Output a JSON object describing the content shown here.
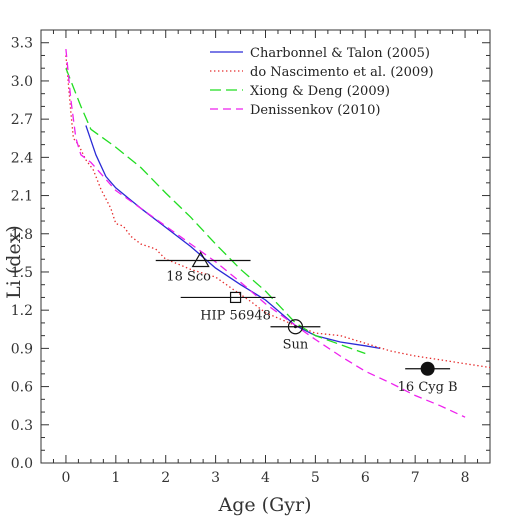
{
  "chart_data": {
    "type": "line",
    "xlabel": "Age (Gyr)",
    "ylabel": "Li (dex)",
    "xlim": [
      -0.5,
      8.5
    ],
    "ylim": [
      0.0,
      3.4
    ],
    "xticks": [
      0,
      1,
      2,
      3,
      4,
      5,
      6,
      7,
      8
    ],
    "yticks": [
      0.0,
      0.3,
      0.6,
      0.9,
      1.2,
      1.5,
      1.8,
      2.1,
      2.4,
      2.7,
      3.0,
      3.3
    ],
    "xtick_labels": [
      "0",
      "1",
      "2",
      "3",
      "4",
      "5",
      "6",
      "7",
      "8"
    ],
    "ytick_labels": [
      "0.0",
      "0.3",
      "0.6",
      "0.9",
      "1.2",
      "1.5",
      "1.8",
      "2.1",
      "2.4",
      "2.7",
      "3.0",
      "3.3"
    ],
    "grid": false,
    "legend_position": "top-right",
    "series": [
      {
        "name": "Charbonnel & Talon (2005)",
        "color": "#2b2bd6",
        "style": "solid",
        "x": [
          0.4,
          0.6,
          0.8,
          1.0,
          1.5,
          2.0,
          2.5,
          3.0,
          3.5,
          4.0,
          4.6,
          5.0,
          5.5,
          6.0,
          6.3
        ],
        "y": [
          2.65,
          2.42,
          2.25,
          2.16,
          2.0,
          1.85,
          1.7,
          1.53,
          1.4,
          1.28,
          1.08,
          1.0,
          0.95,
          0.92,
          0.9
        ]
      },
      {
        "name": "do Nascimento et al. (2009)",
        "color": "#e52a2a",
        "style": "dotted",
        "x": [
          0.0,
          0.1,
          0.15,
          0.25,
          0.4,
          0.55,
          0.7,
          0.9,
          1.0,
          1.15,
          1.3,
          1.5,
          1.8,
          2.0,
          2.2,
          2.5,
          3.0,
          3.4,
          3.7,
          4.0,
          4.6,
          5.0,
          5.5,
          6.0,
          6.5,
          7.0,
          7.5,
          8.0,
          8.5
        ],
        "y": [
          3.2,
          2.75,
          2.55,
          2.5,
          2.38,
          2.3,
          2.15,
          2.0,
          1.88,
          1.86,
          1.78,
          1.72,
          1.68,
          1.6,
          1.57,
          1.52,
          1.46,
          1.35,
          1.27,
          1.18,
          1.08,
          1.02,
          1.0,
          0.94,
          0.88,
          0.84,
          0.81,
          0.78,
          0.75
        ]
      },
      {
        "name": "Xiong & Deng (2009)",
        "color": "#22dd22",
        "style": "dashed",
        "x": [
          0.0,
          0.3,
          0.5,
          1.0,
          1.5,
          2.0,
          2.5,
          3.0,
          3.5,
          4.0,
          4.6,
          5.0,
          5.5,
          6.0
        ],
        "y": [
          3.1,
          2.8,
          2.62,
          2.48,
          2.32,
          2.12,
          1.93,
          1.72,
          1.52,
          1.35,
          1.1,
          1.0,
          0.93,
          0.86
        ]
      },
      {
        "name": "Denissenkov (2010)",
        "color": "#ee22ee",
        "style": "longdash",
        "x": [
          0.0,
          0.1,
          0.2,
          0.3,
          0.5,
          1.0,
          1.5,
          2.0,
          2.5,
          3.0,
          3.5,
          4.0,
          4.6,
          5.0,
          5.5,
          6.0,
          6.5,
          7.0,
          7.5,
          8.0
        ],
        "y": [
          3.25,
          2.85,
          2.55,
          2.42,
          2.36,
          2.14,
          2.0,
          1.86,
          1.72,
          1.58,
          1.42,
          1.25,
          1.08,
          0.97,
          0.84,
          0.72,
          0.63,
          0.53,
          0.45,
          0.36
        ]
      }
    ],
    "annotations": [
      {
        "label": "18 Sco",
        "marker": "open-triangle",
        "x": 2.7,
        "y": 1.59,
        "xerr": [
          1.8,
          3.7
        ],
        "label_pos": "below-left"
      },
      {
        "label": "HIP 56948",
        "marker": "open-square",
        "x": 3.4,
        "y": 1.3,
        "xerr": [
          2.3,
          4.2
        ],
        "label_pos": "below"
      },
      {
        "label": "Sun",
        "marker": "sun-symbol",
        "x": 4.6,
        "y": 1.07,
        "xerr": [
          4.1,
          5.1
        ],
        "label_pos": "below"
      },
      {
        "label": "16 Cyg B",
        "marker": "filled-circle",
        "x": 7.25,
        "y": 0.74,
        "xerr": [
          6.8,
          7.7
        ],
        "label_pos": "below"
      }
    ]
  }
}
